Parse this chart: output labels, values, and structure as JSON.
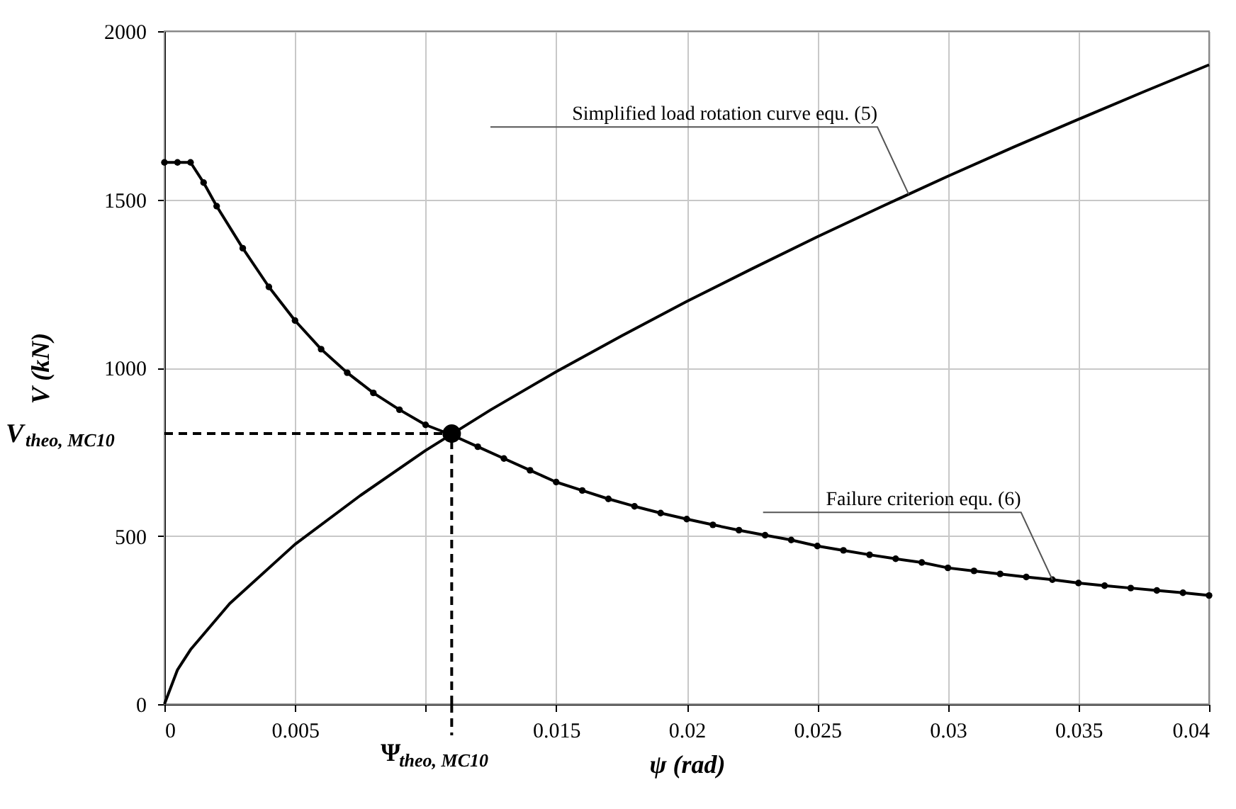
{
  "chart_data": {
    "type": "line",
    "xlabel": "ψ  (rad)",
    "ylabel": "V  (kN)",
    "xlim": [
      0,
      0.04
    ],
    "ylim": [
      0,
      2000
    ],
    "xticks": [
      0,
      0.005,
      {
        "value": 0.01,
        "label": null
      },
      0.015,
      0.02,
      0.025,
      0.03,
      0.035,
      0.04
    ],
    "yticks": [
      0,
      500,
      1000,
      1500,
      2000
    ],
    "grid": true,
    "line_style": "solid",
    "series": [
      {
        "color": "#000000",
        "marker": "none",
        "x": [
          0,
          0.0005,
          0.001,
          0.0025,
          0.005,
          0.0075,
          0.01,
          0.0125,
          0.015,
          0.0175,
          0.02,
          0.0225,
          0.025,
          0.0275,
          0.03,
          0.0325,
          0.035,
          0.0375,
          0.04
        ],
        "values": [
          0,
          102,
          162,
          299,
          475,
          620,
          754,
          875,
          988,
          1094,
          1197,
          1294,
          1389,
          1480,
          1569,
          1655,
          1738,
          1820,
          1900
        ]
      },
      {
        "color": "#000000",
        "marker": "circle",
        "x": [
          0,
          0.0005,
          0.001,
          0.0015,
          0.002,
          0.003,
          0.004,
          0.005,
          0.006,
          0.007,
          0.008,
          0.009,
          0.01,
          0.011,
          0.012,
          0.013,
          0.014,
          0.015,
          0.016,
          0.017,
          0.018,
          0.019,
          0.02,
          0.021,
          0.022,
          0.023,
          0.024,
          0.025,
          0.026,
          0.027,
          0.028,
          0.029,
          0.03,
          0.031,
          0.032,
          0.033,
          0.034,
          0.035,
          0.036,
          0.037,
          0.038,
          0.039,
          0.04
        ],
        "values": [
          1610,
          1610,
          1610,
          1550,
          1480,
          1355,
          1240,
          1140,
          1055,
          985,
          925,
          875,
          830,
          800,
          765,
          730,
          695,
          660,
          635,
          610,
          588,
          568,
          550,
          533,
          517,
          502,
          488,
          470,
          457,
          444,
          432,
          421,
          405,
          396,
          387,
          378,
          370,
          360,
          352,
          345,
          338,
          331,
          323
        ]
      },
      {
        "type": "scatter",
        "color": "#000000",
        "marker": "circle",
        "x": [
          0.011
        ],
        "values": [
          804
        ]
      }
    ],
    "ref_lines": [
      {
        "axis": "y",
        "value": 804,
        "label": "V$_{theo, MC10}$",
        "line_style": "dashed"
      },
      {
        "axis": "x",
        "value": 0.011,
        "label": "Ψ$_{theo, MC10}$",
        "line_style": "dashed"
      }
    ],
    "annotations": [
      {
        "text": "Simplified load rotation curve equ. (5)",
        "x": 0.0285,
        "y": 1515
      },
      {
        "text": "Failure criterion equ. (6)",
        "x": 0.034,
        "y": 370
      }
    ]
  }
}
